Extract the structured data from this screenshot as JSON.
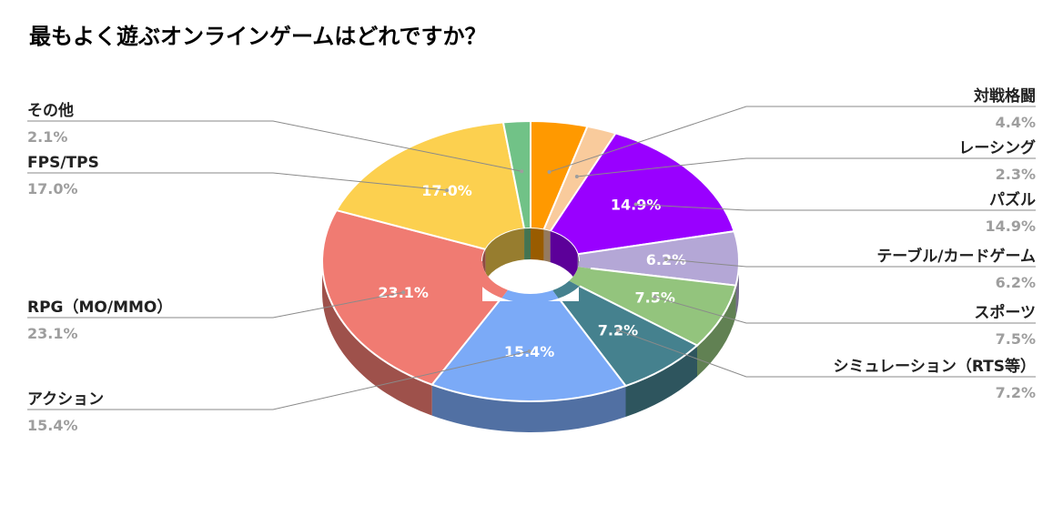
{
  "chart_data": {
    "type": "pie",
    "style": "3d-donut",
    "title": "最もよく遊ぶオンラインゲームはどれですか？",
    "slices": [
      {
        "name": "対戦格闘",
        "value": 4.4,
        "label": "4.4%",
        "color": "#ff9900"
      },
      {
        "name": "レーシング",
        "value": 2.3,
        "label": "2.3%",
        "color": "#f9cb9c"
      },
      {
        "name": "パズル",
        "value": 14.9,
        "label": "14.9%",
        "color": "#9900ff"
      },
      {
        "name": "テーブル/カードゲーム",
        "value": 6.2,
        "label": "6.2%",
        "color": "#b4a7d6"
      },
      {
        "name": "スポーツ",
        "value": 7.5,
        "label": "7.5%",
        "color": "#93c47d"
      },
      {
        "name": "シミュレーション（RTS等）",
        "value": 7.2,
        "label": "7.2%",
        "color": "#45818e"
      },
      {
        "name": "アクション",
        "value": 15.4,
        "label": "15.4%",
        "color": "#7baaf7"
      },
      {
        "name": "RPG（MO/MMO）",
        "value": 23.1,
        "label": "23.1%",
        "color": "#f07b72"
      },
      {
        "name": "FPS/TPS",
        "value": 17.0,
        "label": "17.0%",
        "color": "#fcd04f"
      },
      {
        "name": "その他",
        "value": 2.1,
        "label": "2.1%",
        "color": "#71c287"
      }
    ],
    "legend": "callout-labels"
  }
}
